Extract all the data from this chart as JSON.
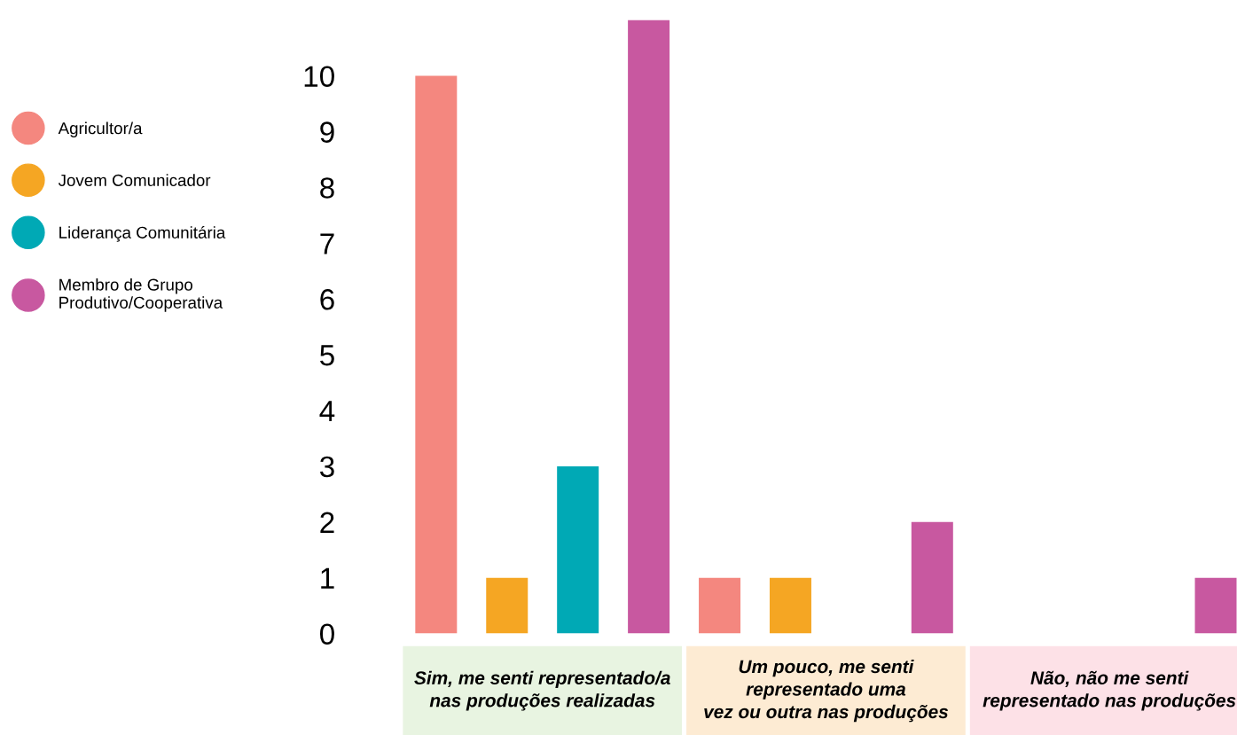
{
  "chart_data": {
    "type": "bar",
    "categories": [
      "Sim, me senti representado/a\nnas produções realizadas",
      "Um pouco, me senti\nrepresentado uma\nvez ou outra nas produções",
      "Não, não me senti\nrepresentado nas produções"
    ],
    "series": [
      {
        "name": "Agricultor/a",
        "color": "#f4877f",
        "values": [
          10,
          1,
          0
        ]
      },
      {
        "name": "Jovem Comunicador",
        "color": "#f5a623",
        "values": [
          1,
          1,
          0
        ]
      },
      {
        "name": "Liderança Comunitária",
        "color": "#00a9b5",
        "values": [
          3,
          0,
          0
        ]
      },
      {
        "name": "Membro de Grupo\nProdutivo/Cooperativa",
        "color": "#c858a0",
        "values": [
          11,
          2,
          1
        ]
      }
    ],
    "ylim": [
      0,
      11.15
    ],
    "yticks": [
      0,
      1,
      2,
      3,
      4,
      5,
      6,
      7,
      8,
      9,
      10
    ],
    "grid": false,
    "legend": "left",
    "marker": "circle"
  }
}
